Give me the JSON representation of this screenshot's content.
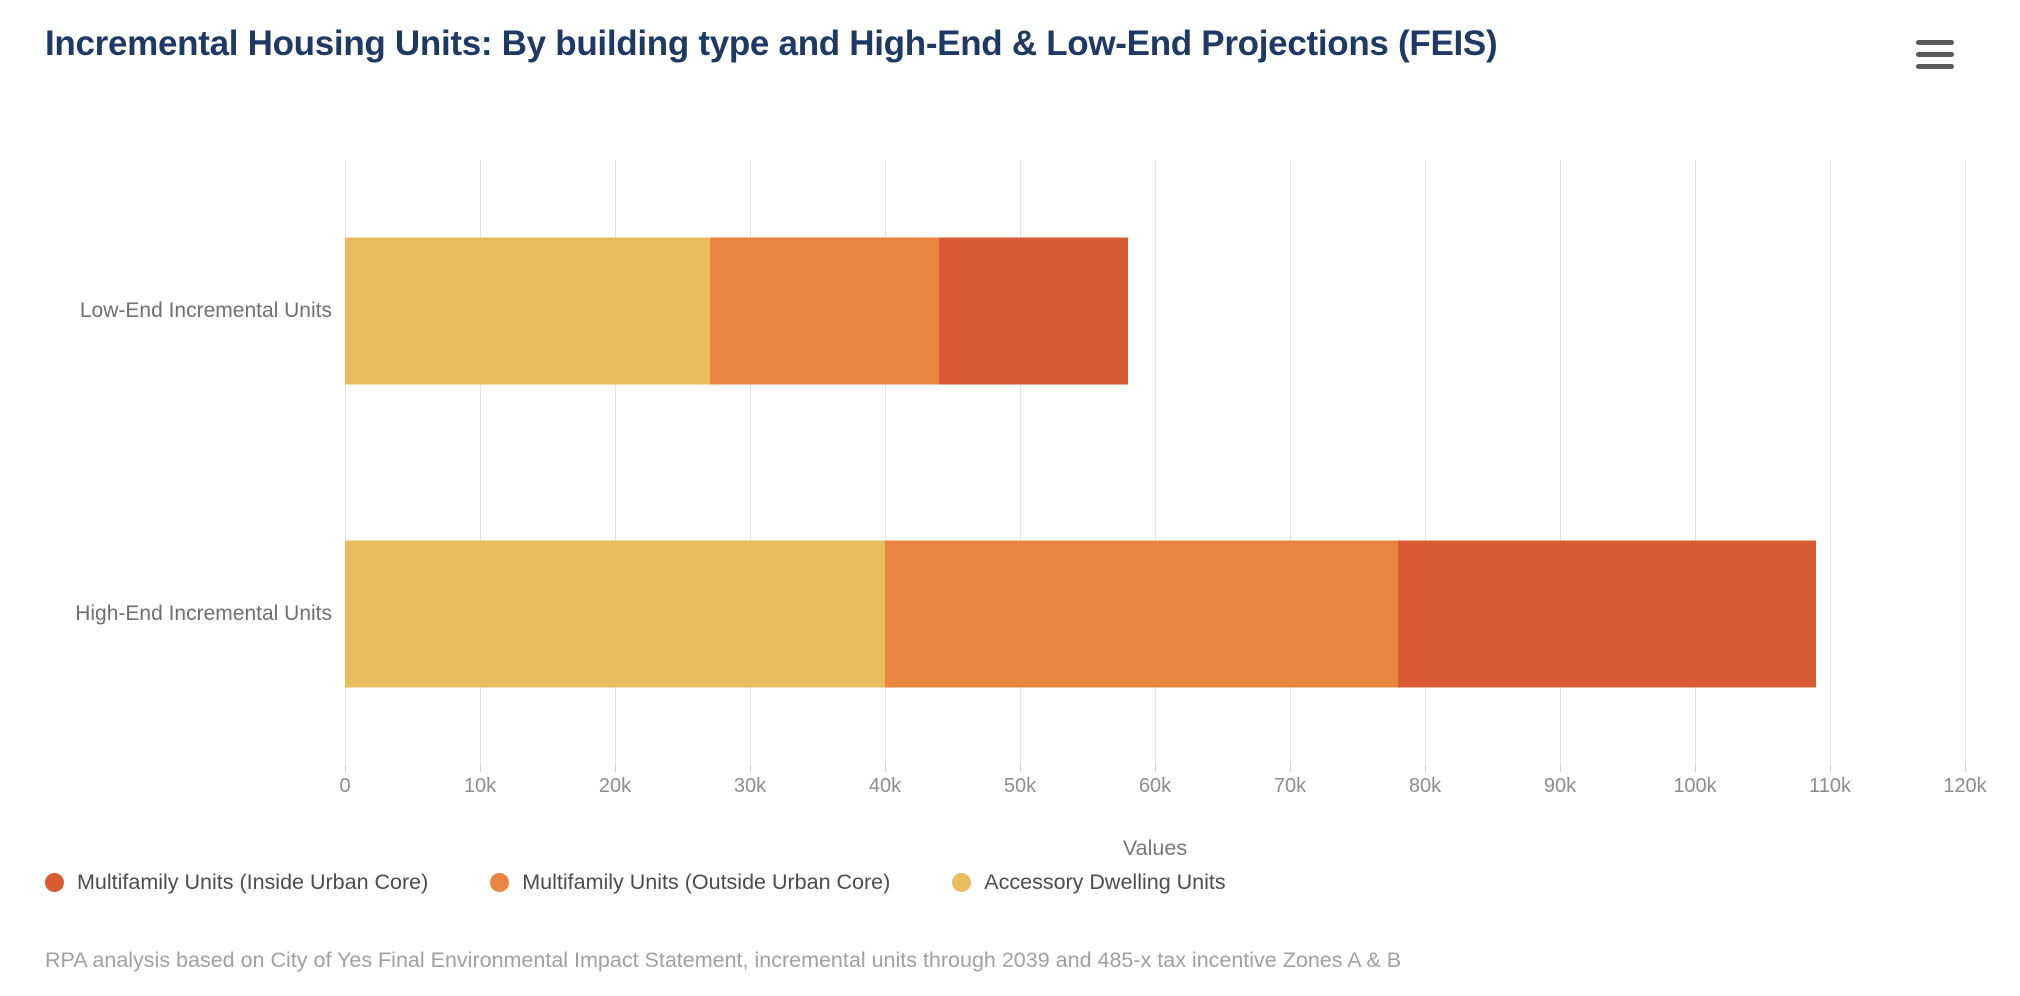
{
  "header": {
    "title": "Incremental Housing Units: By building type and High-End & Low-End Projections (FEIS)",
    "menu_icon": "hamburger-icon"
  },
  "colors": {
    "title": "#1e3a64",
    "grid": "#e4e4e4",
    "adu_yellow": "#e9bd5e",
    "mf_outside_orange": "#e88540",
    "mf_inside_red": "#d85b33"
  },
  "chart_data": {
    "type": "bar",
    "orientation": "horizontal",
    "stacked": true,
    "grid": true,
    "categories": [
      "Low-End Incremental Units",
      "High-End Incremental Units"
    ],
    "series": [
      {
        "name": "Accessory Dwelling Units",
        "color": "#e9bd5e",
        "values": [
          27000,
          40000
        ]
      },
      {
        "name": "Multifamily Units (Outside Urban Core)",
        "color": "#e88540",
        "values": [
          17000,
          38000
        ]
      },
      {
        "name": "Multifamily Units (Inside Urban Core)",
        "color": "#d85b33",
        "values": [
          14000,
          31000
        ]
      }
    ],
    "totals": [
      58000,
      109000
    ],
    "xlabel": "Values",
    "xlim": [
      0,
      120000
    ],
    "x_tick_step": 10000,
    "x_tick_labels": [
      "0",
      "10k",
      "20k",
      "30k",
      "40k",
      "50k",
      "60k",
      "70k",
      "80k",
      "90k",
      "100k",
      "110k",
      "120k"
    ],
    "legend_position": "bottom"
  },
  "legend": {
    "items": [
      {
        "label": "Multifamily Units (Inside Urban Core)",
        "color": "#d85b33"
      },
      {
        "label": "Multifamily Units (Outside Urban Core)",
        "color": "#e88540"
      },
      {
        "label": "Accessory Dwelling Units",
        "color": "#e9bd5e"
      }
    ]
  },
  "footer": {
    "note": "RPA analysis based on City of Yes Final Environmental Impact Statement, incremental units through 2039 and 485-x tax incentive Zones A & B"
  }
}
